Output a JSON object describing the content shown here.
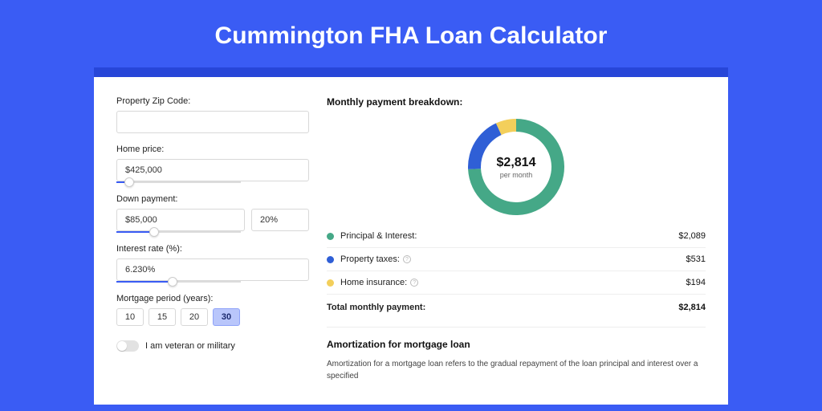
{
  "page": {
    "title": "Cummington FHA Loan Calculator",
    "background_color": "#3a5cf4",
    "card_accent_color": "#2746d8"
  },
  "form": {
    "zip": {
      "label": "Property Zip Code:",
      "value": ""
    },
    "home_price": {
      "label": "Home price:",
      "value": "$425,000",
      "slider_pct": 10
    },
    "down_payment": {
      "label": "Down payment:",
      "value": "$85,000",
      "pct_value": "20%",
      "slider_pct": 30
    },
    "interest_rate": {
      "label": "Interest rate (%):",
      "value": "6.230%",
      "slider_pct": 45
    },
    "mortgage_period": {
      "label": "Mortgage period (years):",
      "options": [
        "10",
        "15",
        "20",
        "30"
      ],
      "selected": "30"
    },
    "veteran": {
      "label": "I am veteran or military",
      "on": false
    }
  },
  "breakdown": {
    "title": "Monthly payment breakdown:",
    "donut": {
      "amount": "$2,814",
      "sub": "per month",
      "slices": [
        {
          "key": "principal_interest",
          "value": 2089,
          "color": "#45a887"
        },
        {
          "key": "property_taxes",
          "value": 531,
          "color": "#2f5fd6"
        },
        {
          "key": "home_insurance",
          "value": 194,
          "color": "#f3cf5b"
        }
      ],
      "thickness": 16,
      "radius": 60,
      "background": "#ffffff"
    },
    "items": [
      {
        "label": "Principal & Interest:",
        "value": "$2,089",
        "color": "#45a887",
        "help": false
      },
      {
        "label": "Property taxes:",
        "value": "$531",
        "color": "#2f5fd6",
        "help": true
      },
      {
        "label": "Home insurance:",
        "value": "$194",
        "color": "#f3cf5b",
        "help": true
      }
    ],
    "total": {
      "label": "Total monthly payment:",
      "value": "$2,814"
    }
  },
  "amortization": {
    "title": "Amortization for mortgage loan",
    "text": "Amortization for a mortgage loan refers to the gradual repayment of the loan principal and interest over a specified"
  }
}
